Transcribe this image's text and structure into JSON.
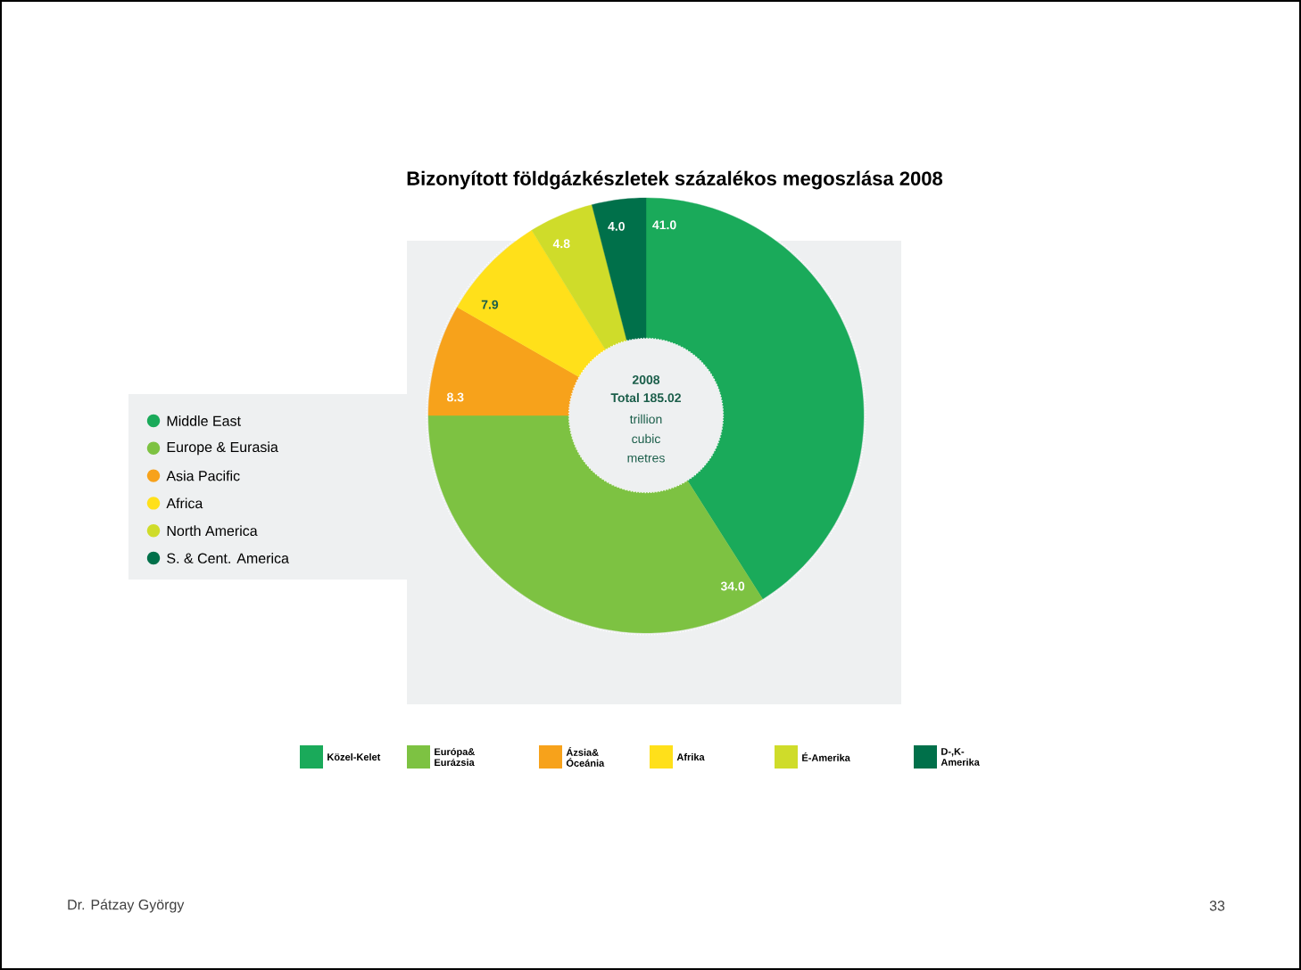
{
  "chart_data": {
    "type": "donut",
    "title": "Bizonyított földgázkészletek százalékos megoszlása 2008",
    "categories": [
      "Middle East",
      "Europe & Eurasia",
      "Asia Pacific",
      "Africa",
      "North America",
      "S. & Cent. America"
    ],
    "values": [
      41.0,
      34.0,
      8.3,
      7.9,
      4.8,
      4.0
    ],
    "colors": [
      "#1aaa5a",
      "#7dc242",
      "#f7a21b",
      "#ffe01a",
      "#cfdc2a",
      "#00704a"
    ],
    "value_labels": [
      "41.0",
      "34.0",
      "8.3",
      "7.9",
      "4.8",
      "4.0"
    ],
    "legend": "left",
    "annotations": [
      "2008",
      "Total 185.02",
      "trillion",
      "cubic",
      "metres",
      "Közel-Kelet",
      "Európa& Eurázsia",
      "Ázsia& Óceánia",
      "Afrika",
      "É-Amerika",
      "D-,K-Amerika",
      "Dr. Pátzay György",
      "33"
    ]
  }
}
